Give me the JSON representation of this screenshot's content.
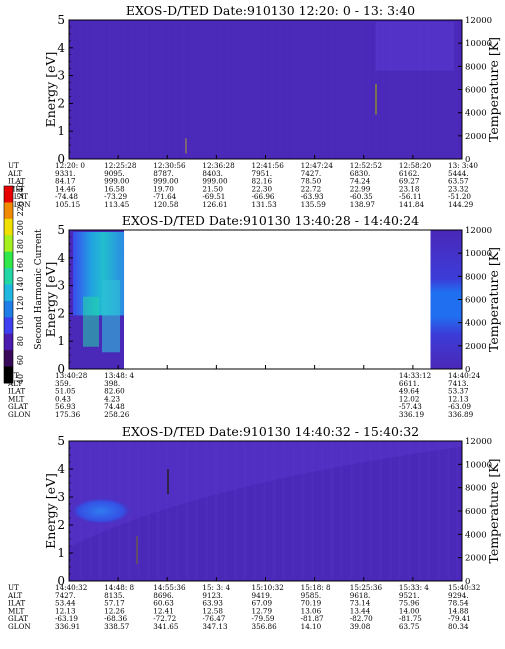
{
  "colorbar": {
    "label": "Second Harmonic Current",
    "ticks": [
      "40",
      "60",
      "80",
      "100",
      "120",
      "140",
      "160",
      "180",
      "200",
      "220",
      "240"
    ],
    "colors": [
      "#000000",
      "#3a0a5a",
      "#4b1bb0",
      "#3d3ff0",
      "#1f7de8",
      "#1fb6e0",
      "#22d6a6",
      "#30e84a",
      "#a6f020",
      "#f0e000",
      "#f08a00",
      "#e80000"
    ]
  },
  "chart_data": [
    {
      "type": "heatmap",
      "title": "EXOS-D/TED   Date:910130  12:20: 0 - 13: 3:40",
      "ylabel": "Energy [eV]",
      "ylabel2": "Temperature [K]",
      "ylim": [
        0,
        5
      ],
      "y2lim": [
        0,
        12000
      ],
      "yticks": [
        "0",
        "1",
        "2",
        "3",
        "4",
        "5"
      ],
      "y2ticks": [
        "0",
        "2000",
        "4000",
        "6000",
        "8000",
        "10000",
        "12000"
      ],
      "coverage": [
        [
          0,
          1
        ]
      ],
      "base_color": "#4a28b8",
      "annotation": [
        {
          "row_label": "UT",
          "values": [
            "12:20: 0",
            "12:25:28",
            "12:30:56",
            "12:36:28",
            "12:41:56",
            "12:47:24",
            "12:52:52",
            "12:58:20",
            "13: 3:40"
          ]
        },
        {
          "row_label": "ALT",
          "values": [
            "9331.",
            "9095.",
            "8787.",
            "8403.",
            "7951.",
            "7427.",
            "6830.",
            "6162.",
            "5444."
          ]
        },
        {
          "row_label": "ILAT",
          "values": [
            "84.17",
            "999.00",
            "999.00",
            "999.00",
            "82.16",
            "78.50",
            "74.24",
            "69.27",
            "63.57"
          ]
        },
        {
          "row_label": "MLT",
          "values": [
            "14.46",
            "16.58",
            "19.70",
            "21.50",
            "22.30",
            "22.72",
            "22.99",
            "23.18",
            "23.32"
          ]
        },
        {
          "row_label": "GLAT",
          "values": [
            "-74.48",
            "-73.29",
            "-71.64",
            "-69.51",
            "-66.96",
            "-63.93",
            "-60.35",
            "-56.11",
            "-51.20"
          ]
        },
        {
          "row_label": "GLON",
          "values": [
            "105.15",
            "113.45",
            "120.58",
            "126.61",
            "131.53",
            "135.59",
            "138.97",
            "141.84",
            "144.29"
          ]
        }
      ]
    },
    {
      "type": "heatmap",
      "title": "EXOS-D/TED   Date:910130  13:40:28 - 14:40:24",
      "ylabel": "Energy [eV]",
      "ylabel2": "Temperature [K]",
      "ylim": [
        0,
        5
      ],
      "y2lim": [
        0,
        12000
      ],
      "yticks": [
        "0",
        "1",
        "2",
        "3",
        "4",
        "5"
      ],
      "y2ticks": [
        "0",
        "2000",
        "4000",
        "6000",
        "8000",
        "10000",
        "12000"
      ],
      "coverage": [
        [
          0,
          0.14
        ],
        [
          0.92,
          1
        ]
      ],
      "base_color": "#4a28b8",
      "annotation": [
        {
          "row_label": "UT",
          "values": [
            "13:40:28",
            "13:48: 4",
            "",
            "",
            "",
            "",
            "",
            "14:33:12",
            "14:40:24"
          ]
        },
        {
          "row_label": "ALT",
          "values": [
            "359.",
            "398.",
            "",
            "",
            "",
            "",
            "",
            "6611.",
            "7413."
          ]
        },
        {
          "row_label": "ILAT",
          "values": [
            "51.05",
            "82.60",
            "",
            "",
            "",
            "",
            "",
            "49.64",
            "53.37"
          ]
        },
        {
          "row_label": "MLT",
          "values": [
            "0.43",
            "4.23",
            "",
            "",
            "",
            "",
            "",
            "12.02",
            "12.13"
          ]
        },
        {
          "row_label": "GLAT",
          "values": [
            "56.93",
            "74.48",
            "",
            "",
            "",
            "",
            "",
            "-57.43",
            "-63.09"
          ]
        },
        {
          "row_label": "GLON",
          "values": [
            "175.36",
            "258.26",
            "",
            "",
            "",
            "",
            "",
            "336.19",
            "336.89"
          ]
        }
      ]
    },
    {
      "type": "heatmap",
      "title": "EXOS-D/TED   Date:910130  14:40:32 - 15:40:32",
      "ylabel": "Energy [eV]",
      "ylabel2": "Temperature [K]",
      "ylim": [
        0,
        5
      ],
      "y2lim": [
        0,
        12000
      ],
      "yticks": [
        "0",
        "1",
        "2",
        "3",
        "4",
        "5"
      ],
      "y2ticks": [
        "0",
        "2000",
        "4000",
        "6000",
        "8000",
        "10000",
        "12000"
      ],
      "coverage": [
        [
          0,
          1
        ]
      ],
      "base_color": "#4a28b8",
      "annotation": [
        {
          "row_label": "UT",
          "values": [
            "14:40:32",
            "14:48: 8",
            "14:55:36",
            "15: 3: 4",
            "15:10:32",
            "15:18: 8",
            "15:25:36",
            "15:33: 4",
            "15:40:32"
          ]
        },
        {
          "row_label": "ALT",
          "values": [
            "7427.",
            "8135.",
            "8696.",
            "9123.",
            "9419.",
            "9585.",
            "9618.",
            "9521.",
            "9294."
          ]
        },
        {
          "row_label": "ILAT",
          "values": [
            "53.44",
            "57.17",
            "60.63",
            "63.93",
            "67.09",
            "70.19",
            "73.14",
            "75.96",
            "78.54"
          ]
        },
        {
          "row_label": "MLT",
          "values": [
            "12.13",
            "12.26",
            "12.41",
            "12.58",
            "12.79",
            "13.06",
            "13.44",
            "14.00",
            "14.88"
          ]
        },
        {
          "row_label": "GLAT",
          "values": [
            "-63.19",
            "-68.36",
            "-72.72",
            "-76.47",
            "-79.59",
            "-81.87",
            "-82.70",
            "-81.75",
            "-79.41"
          ]
        },
        {
          "row_label": "GLON",
          "values": [
            "336.91",
            "338.57",
            "341.65",
            "347.13",
            "356.86",
            "14.10",
            "39.08",
            "63.75",
            "80.34"
          ]
        }
      ]
    }
  ]
}
